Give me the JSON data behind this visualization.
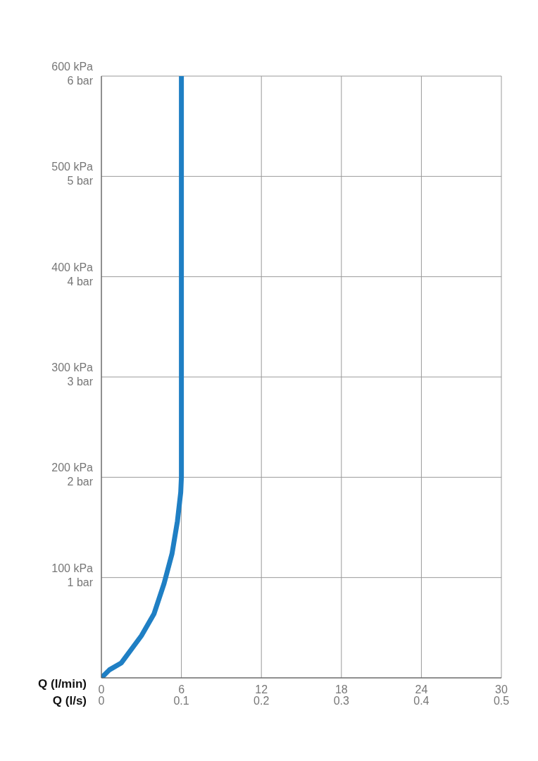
{
  "chart_data": {
    "type": "line",
    "xlabel": "Q (l/min)",
    "x2label": "Q (l/s)",
    "x": [
      0,
      0.6,
      1.5,
      3.0,
      3.95,
      4.7,
      5.3,
      5.7,
      5.95,
      6,
      6
    ],
    "series": [
      {
        "color": "#1f7fc4",
        "values": [
          0,
          8,
          15,
          42,
          64,
          94,
          124,
          156,
          185,
          200,
          600
        ]
      }
    ],
    "xlim": [
      0,
      30
    ],
    "xticks": [
      0,
      6,
      12,
      18,
      24,
      30
    ],
    "x2lim": [
      0,
      0.5
    ],
    "x2ticks": [
      0,
      0.1,
      0.2,
      0.3,
      0.4,
      0.5
    ],
    "ylim": [
      0,
      600
    ],
    "yticks": [
      {
        "value": 0,
        "label": null
      },
      {
        "value": 100,
        "label": "100 kPa"
      },
      {
        "value": 200,
        "label": "200 kPa"
      },
      {
        "value": 300,
        "label": "300 kPa"
      },
      {
        "value": 400,
        "label": "400 kPa"
      },
      {
        "value": 500,
        "label": "500 kPa"
      },
      {
        "value": 600,
        "label": "600 kPa"
      }
    ],
    "y2lim": [
      0,
      6
    ],
    "y2ticks": [
      {
        "value": 0,
        "label": null
      },
      {
        "value": 1,
        "label": "1 bar"
      },
      {
        "value": 2,
        "label": "2 bar"
      },
      {
        "value": 3,
        "label": "3 bar"
      },
      {
        "value": 4,
        "label": "4 bar"
      },
      {
        "value": 5,
        "label": "5 bar"
      },
      {
        "value": 6,
        "label": "6 bar"
      }
    ],
    "grid": true,
    "marker": "none",
    "line_style": "solid"
  }
}
